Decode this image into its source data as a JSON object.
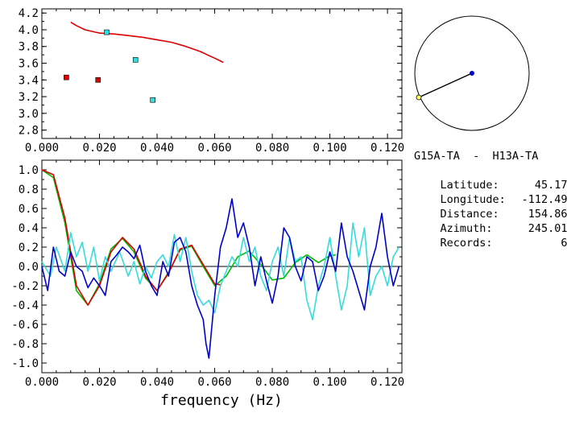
{
  "pair_title": "G15A-TA  -  H13A-TA",
  "info": [
    {
      "label": "Latitude:",
      "value": "45.17"
    },
    {
      "label": "Longitude:",
      "value": "-112.49"
    },
    {
      "label": "Distance:",
      "value": "154.86"
    },
    {
      "label": "Azimuth:",
      "value": "245.01"
    },
    {
      "label": "Records:",
      "value": "6"
    }
  ],
  "colors": {
    "red": "#dd0000",
    "cyan": "#33dddd",
    "blue": "#0000cc",
    "green": "#00bb00",
    "black": "#000000"
  },
  "chart_data": [
    {
      "type": "scatter",
      "xlim": [
        0,
        0.125
      ],
      "ylim": [
        2.7,
        4.25
      ],
      "x_ticks": [
        "0.000",
        "0.020",
        "0.040",
        "0.060",
        "0.080",
        "0.100",
        "0.120"
      ],
      "y_ticks": [
        "2.8",
        "3.0",
        "3.2",
        "3.4",
        "3.6",
        "3.8",
        "4.0",
        "4.2"
      ],
      "series": [
        {
          "color": "red",
          "kind": "line",
          "x": [
            0.01,
            0.012,
            0.015,
            0.02,
            0.025,
            0.03,
            0.035,
            0.04,
            0.045,
            0.05,
            0.055,
            0.06,
            0.063
          ],
          "y": [
            4.09,
            4.05,
            4.0,
            3.96,
            3.95,
            3.93,
            3.91,
            3.88,
            3.85,
            3.8,
            3.74,
            3.66,
            3.61
          ]
        },
        {
          "color": "red",
          "kind": "points",
          "x": [
            0.0085,
            0.0195
          ],
          "y": [
            3.43,
            3.4
          ]
        },
        {
          "color": "cyan",
          "kind": "points",
          "x": [
            0.0225,
            0.0325,
            0.0385
          ],
          "y": [
            3.97,
            3.64,
            3.16
          ]
        }
      ]
    },
    {
      "type": "line",
      "xlabel": "frequency (Hz)",
      "xlim": [
        0,
        0.125
      ],
      "ylim": [
        -1.1,
        1.1
      ],
      "x_ticks": [
        "0.000",
        "0.020",
        "0.040",
        "0.060",
        "0.080",
        "0.100",
        "0.120"
      ],
      "y_ticks": [
        "-1.0",
        "-0.8",
        "-0.6",
        "-0.4",
        "-0.2",
        "0.0",
        "0.2",
        "0.4",
        "0.6",
        "0.8",
        "1.0"
      ],
      "series": [
        {
          "color": "green",
          "x": [
            0.0,
            0.004,
            0.008,
            0.012,
            0.016,
            0.02,
            0.024,
            0.028,
            0.032,
            0.036,
            0.04,
            0.044,
            0.048,
            0.052,
            0.056,
            0.06,
            0.064,
            0.068,
            0.072,
            0.076,
            0.08,
            0.084,
            0.088,
            0.092,
            0.096,
            0.1,
            0.102
          ],
          "y": [
            1.0,
            0.92,
            0.45,
            -0.25,
            -0.4,
            -0.18,
            0.18,
            0.29,
            0.15,
            -0.12,
            -0.25,
            -0.06,
            0.17,
            0.21,
            0.0,
            -0.2,
            -0.1,
            0.1,
            0.16,
            0.02,
            -0.14,
            -0.12,
            0.04,
            0.12,
            0.04,
            0.11,
            0.12
          ]
        },
        {
          "color": "red",
          "x": [
            0.0,
            0.004,
            0.008,
            0.012,
            0.016,
            0.02,
            0.024,
            0.028,
            0.032,
            0.036,
            0.04,
            0.044,
            0.048,
            0.052,
            0.056,
            0.06,
            0.062
          ],
          "y": [
            1.0,
            0.95,
            0.5,
            -0.2,
            -0.4,
            -0.2,
            0.15,
            0.3,
            0.18,
            -0.1,
            -0.25,
            -0.07,
            0.18,
            0.22,
            0.02,
            -0.18,
            -0.19
          ]
        },
        {
          "color": "cyan",
          "x": [
            0.0,
            0.003,
            0.005,
            0.008,
            0.01,
            0.012,
            0.014,
            0.016,
            0.018,
            0.02,
            0.022,
            0.024,
            0.027,
            0.03,
            0.032,
            0.034,
            0.036,
            0.038,
            0.04,
            0.042,
            0.044,
            0.046,
            0.048,
            0.05,
            0.052,
            0.054,
            0.056,
            0.058,
            0.06,
            0.062,
            0.064,
            0.066,
            0.068,
            0.07,
            0.072,
            0.074,
            0.076,
            0.078,
            0.08,
            0.082,
            0.084,
            0.086,
            0.088,
            0.09,
            0.092,
            0.094,
            0.096,
            0.098,
            0.1,
            0.102,
            0.104,
            0.106,
            0.108,
            0.11,
            0.112,
            0.114,
            0.116,
            0.118,
            0.12,
            0.122,
            0.124
          ],
          "y": [
            0.05,
            -0.1,
            0.2,
            -0.05,
            0.35,
            0.1,
            0.25,
            -0.05,
            0.2,
            -0.15,
            0.1,
            -0.05,
            0.15,
            -0.1,
            0.05,
            -0.18,
            0.0,
            -0.12,
            0.05,
            0.12,
            0.0,
            0.33,
            0.05,
            0.3,
            -0.05,
            -0.3,
            -0.4,
            -0.35,
            -0.48,
            -0.2,
            -0.05,
            0.1,
            0.0,
            0.3,
            0.05,
            0.2,
            -0.1,
            -0.25,
            0.05,
            0.2,
            -0.1,
            0.3,
            0.05,
            0.1,
            -0.35,
            -0.55,
            -0.2,
            0.0,
            0.3,
            -0.1,
            -0.45,
            -0.2,
            0.45,
            0.1,
            0.4,
            -0.3,
            -0.1,
            0.0,
            -0.2,
            0.1,
            0.2
          ]
        },
        {
          "color": "blue",
          "x": [
            0.0,
            0.002,
            0.004,
            0.006,
            0.008,
            0.01,
            0.012,
            0.014,
            0.016,
            0.018,
            0.02,
            0.022,
            0.024,
            0.026,
            0.028,
            0.03,
            0.032,
            0.034,
            0.036,
            0.038,
            0.04,
            0.042,
            0.044,
            0.046,
            0.048,
            0.05,
            0.052,
            0.054,
            0.056,
            0.057,
            0.058,
            0.06,
            0.062,
            0.064,
            0.066,
            0.068,
            0.07,
            0.072,
            0.074,
            0.076,
            0.078,
            0.08,
            0.082,
            0.084,
            0.086,
            0.088,
            0.09,
            0.092,
            0.094,
            0.096,
            0.098,
            0.1,
            0.102,
            0.104,
            0.106,
            0.108,
            0.11,
            0.112,
            0.114,
            0.116,
            0.118,
            0.12,
            0.122,
            0.124
          ],
          "y": [
            0.0,
            -0.25,
            0.2,
            -0.05,
            -0.1,
            0.15,
            0.0,
            -0.05,
            -0.22,
            -0.12,
            -0.2,
            -0.3,
            0.05,
            0.12,
            0.2,
            0.15,
            0.08,
            0.22,
            -0.05,
            -0.2,
            -0.3,
            0.05,
            -0.1,
            0.25,
            0.3,
            0.15,
            -0.2,
            -0.4,
            -0.55,
            -0.8,
            -0.95,
            -0.3,
            0.2,
            0.4,
            0.7,
            0.3,
            0.45,
            0.2,
            -0.2,
            0.1,
            -0.15,
            -0.38,
            -0.1,
            0.4,
            0.3,
            0.0,
            -0.15,
            0.1,
            0.05,
            -0.25,
            -0.1,
            0.15,
            -0.05,
            0.45,
            0.1,
            -0.05,
            -0.25,
            -0.45,
            0.0,
            0.2,
            0.55,
            0.1,
            -0.2,
            0.0
          ]
        }
      ]
    }
  ],
  "map": {
    "circle": true,
    "center_point": "blue",
    "end_point": "yellow"
  }
}
